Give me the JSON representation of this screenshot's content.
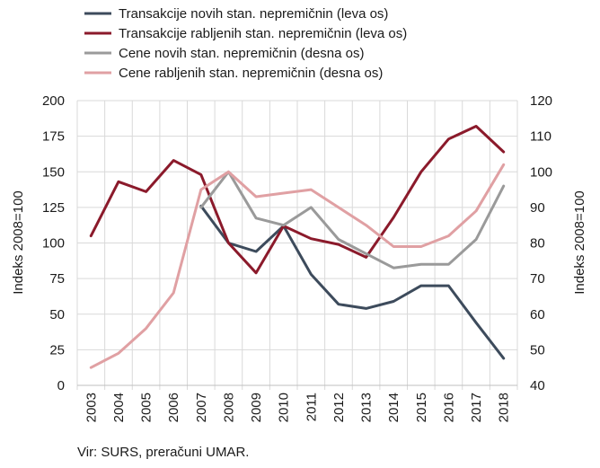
{
  "chart_data": {
    "type": "line",
    "categories": [
      "2003",
      "2004",
      "2005",
      "2006",
      "2007",
      "2008",
      "2009",
      "2010",
      "2011",
      "2012",
      "2013",
      "2014",
      "2015",
      "2016",
      "2017",
      "2018"
    ],
    "series": [
      {
        "name": "Transakcije novih stan. nepremičnin (leva os)",
        "axis": "left",
        "color": "#3d4b5c",
        "values": [
          null,
          null,
          null,
          null,
          126,
          100,
          94,
          112,
          78,
          57,
          54,
          59,
          70,
          70,
          44,
          19
        ]
      },
      {
        "name": "Transakcije rabljenih stan. nepremičnin (leva os)",
        "axis": "left",
        "color": "#8b1a2b",
        "values": [
          105,
          143,
          136,
          158,
          148,
          100,
          79,
          112,
          103,
          99,
          90,
          118,
          150,
          173,
          182,
          164
        ]
      },
      {
        "name": "Cene novih stan. nepremičnin (desna os)",
        "axis": "right",
        "color": "#9a9a9a",
        "values": [
          null,
          null,
          null,
          null,
          90,
          100,
          87,
          85,
          90,
          81,
          77,
          73,
          74,
          74,
          81,
          96
        ]
      },
      {
        "name": "Cene rabljenih stan. nepremičnin (desna os)",
        "axis": "right",
        "color": "#e0a0a3",
        "values": [
          45,
          49,
          56,
          66,
          95,
          100,
          93,
          94,
          95,
          90,
          85,
          79,
          79,
          82,
          89,
          102
        ]
      }
    ],
    "y_left": {
      "label": "Indeks 2008=100",
      "min": 0,
      "max": 200,
      "ticks": [
        0,
        25,
        50,
        75,
        100,
        125,
        150,
        175,
        200
      ]
    },
    "y_right": {
      "label": "Indeks 2008=100",
      "min": 40,
      "max": 120,
      "ticks": [
        40,
        50,
        60,
        70,
        80,
        90,
        100,
        110,
        120
      ]
    },
    "grid": true,
    "legend": "top"
  },
  "source": "Vir: SURS, preračuni UMAR."
}
